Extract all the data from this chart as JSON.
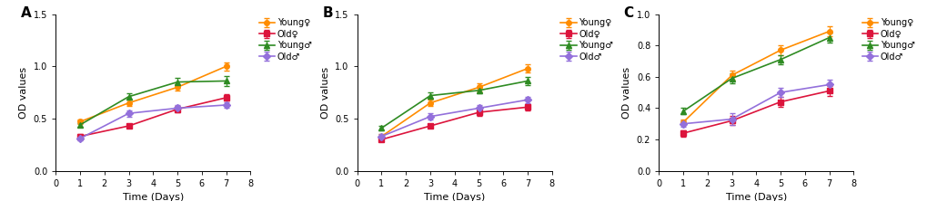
{
  "panels": [
    "A",
    "B",
    "C"
  ],
  "x": [
    1,
    3,
    5,
    7
  ],
  "series_labels": [
    "Young♀",
    "Old♀",
    "Young♂",
    "Old♂"
  ],
  "series_colors": [
    "#FF8C00",
    "#DC143C",
    "#2E8B22",
    "#9370DB"
  ],
  "series_markers": [
    "o",
    "s",
    "^",
    "D"
  ],
  "panel_A": {
    "young_f": [
      0.47,
      0.65,
      0.8,
      1.0
    ],
    "old_f": [
      0.33,
      0.43,
      0.59,
      0.7
    ],
    "young_m": [
      0.44,
      0.71,
      0.85,
      0.86
    ],
    "old_m": [
      0.31,
      0.55,
      0.6,
      0.63
    ],
    "young_f_err": [
      0.02,
      0.03,
      0.03,
      0.04
    ],
    "old_f_err": [
      0.02,
      0.02,
      0.03,
      0.03
    ],
    "young_m_err": [
      0.02,
      0.03,
      0.04,
      0.05
    ],
    "old_m_err": [
      0.02,
      0.03,
      0.03,
      0.03
    ],
    "ylim": [
      0.0,
      1.5
    ],
    "yticks": [
      0.0,
      0.5,
      1.0,
      1.5
    ]
  },
  "panel_B": {
    "young_f": [
      0.33,
      0.65,
      0.8,
      0.98
    ],
    "old_f": [
      0.3,
      0.43,
      0.56,
      0.61
    ],
    "young_m": [
      0.41,
      0.72,
      0.77,
      0.86
    ],
    "old_m": [
      0.33,
      0.52,
      0.6,
      0.68
    ],
    "young_f_err": [
      0.02,
      0.03,
      0.04,
      0.04
    ],
    "old_f_err": [
      0.02,
      0.02,
      0.03,
      0.03
    ],
    "young_m_err": [
      0.02,
      0.03,
      0.03,
      0.04
    ],
    "old_m_err": [
      0.02,
      0.03,
      0.03,
      0.03
    ],
    "ylim": [
      0.0,
      1.5
    ],
    "yticks": [
      0.0,
      0.5,
      1.0,
      1.5
    ]
  },
  "panel_C": {
    "young_f": [
      0.31,
      0.61,
      0.77,
      0.89
    ],
    "old_f": [
      0.24,
      0.32,
      0.44,
      0.51
    ],
    "young_m": [
      0.38,
      0.59,
      0.71,
      0.85
    ],
    "old_m": [
      0.3,
      0.33,
      0.5,
      0.55
    ],
    "young_f_err": [
      0.02,
      0.03,
      0.03,
      0.03
    ],
    "old_f_err": [
      0.02,
      0.03,
      0.03,
      0.03
    ],
    "young_m_err": [
      0.02,
      0.03,
      0.03,
      0.03
    ],
    "old_m_err": [
      0.02,
      0.04,
      0.03,
      0.03
    ],
    "ylim": [
      0.0,
      1.0
    ],
    "yticks": [
      0.0,
      0.2,
      0.4,
      0.6,
      0.8,
      1.0
    ]
  },
  "xlabel": "Time (Days)",
  "ylabel": "OD values",
  "xlim": [
    0,
    8
  ],
  "xticks": [
    0,
    1,
    2,
    3,
    4,
    5,
    6,
    7,
    8
  ],
  "marker_size": 4,
  "line_width": 1.2,
  "cap_size": 2.5,
  "err_linewidth": 0.8,
  "bg_color": "#FFFFFF",
  "tick_label_size": 7,
  "axis_label_size": 8,
  "legend_fontsize": 7,
  "panel_label_fontsize": 11
}
